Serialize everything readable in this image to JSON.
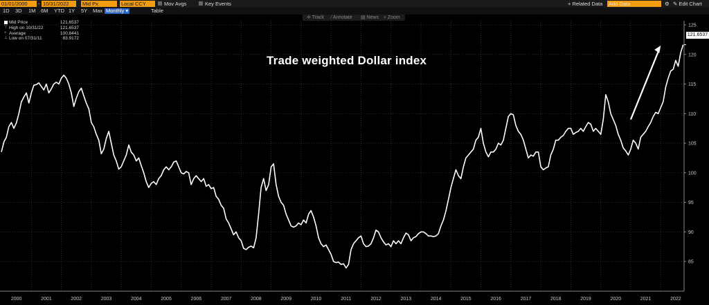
{
  "toolbar": {
    "start_date": "01/01/2000",
    "end_date": "10/31/2022",
    "price_field": "Mid Px",
    "currency": "Local CCY",
    "mov_avgs": "Mov Avgs",
    "key_events": "Key Events",
    "related_data_label": "+ Related Data",
    "related_data_placeholder": "Add Data",
    "edit_chart": "Edit Chart",
    "periods": [
      "1D",
      "3D",
      "1M",
      "6M",
      "YTD",
      "1Y",
      "5Y",
      "Max"
    ],
    "frequency": "Monthly",
    "table": "Table"
  },
  "chart_tools": {
    "track": "Track",
    "annotate": "Annotate",
    "news": "News",
    "zoom": "Zoom"
  },
  "legend": {
    "mid_price_label": "Mid Price",
    "mid_price_value": "121.6537",
    "high_label": "High on 10/31/22",
    "high_value": "121.6537",
    "average_label": "Average",
    "average_value": "100.8441",
    "low_label": "Low on 07/31/11",
    "low_value": "83.9172"
  },
  "last_value_tag": "121.6537",
  "colors": {
    "background": "#000000",
    "line": "#ffffff",
    "accent": "#f39c12"
  },
  "chart_data": {
    "type": "line",
    "title": "Trade weighted Dollar index",
    "xlabel": "",
    "ylabel": "",
    "ylim": [
      82,
      125
    ],
    "yticks": [
      85,
      90,
      95,
      100,
      105,
      110,
      115,
      120,
      125
    ],
    "xticks": [
      "2000",
      "2001",
      "2002",
      "2003",
      "2004",
      "2005",
      "2006",
      "2007",
      "2008",
      "2009",
      "2010",
      "2011",
      "2012",
      "2013",
      "2014",
      "2015",
      "2016",
      "2017",
      "2018",
      "2019",
      "2020",
      "2021",
      "2022"
    ],
    "grid": true,
    "annotations": [
      "white arrow pointing up from 2021 to 2022"
    ],
    "series": [
      {
        "x": [
          2000.0,
          2000.083,
          2000.167,
          2000.25,
          2000.333,
          2000.417,
          2000.5,
          2000.583,
          2000.667,
          2000.75,
          2000.833,
          2000.917,
          2001.0,
          2001.083,
          2001.167,
          2001.25,
          2001.333,
          2001.417,
          2001.5,
          2001.583,
          2001.667,
          2001.75,
          2001.833,
          2001.917,
          2002.0,
          2002.083,
          2002.167,
          2002.25,
          2002.333,
          2002.417,
          2002.5,
          2002.583,
          2002.667,
          2002.75,
          2002.833,
          2002.917,
          2003.0,
          2003.083,
          2003.167,
          2003.25,
          2003.333,
          2003.417,
          2003.5,
          2003.583,
          2003.667,
          2003.75,
          2003.833,
          2003.917,
          2004.0,
          2004.083,
          2004.167,
          2004.25,
          2004.333,
          2004.417,
          2004.5,
          2004.583,
          2004.667,
          2004.75,
          2004.833,
          2004.917,
          2005.0,
          2005.083,
          2005.167,
          2005.25,
          2005.333,
          2005.417,
          2005.5,
          2005.583,
          2005.667,
          2005.75,
          2005.833,
          2005.917,
          2006.0,
          2006.083,
          2006.167,
          2006.25,
          2006.333,
          2006.417,
          2006.5,
          2006.583,
          2006.667,
          2006.75,
          2006.833,
          2006.917,
          2007.0,
          2007.083,
          2007.167,
          2007.25,
          2007.333,
          2007.417,
          2007.5,
          2007.583,
          2007.667,
          2007.75,
          2007.833,
          2007.917,
          2008.0,
          2008.083,
          2008.167,
          2008.25,
          2008.333,
          2008.417,
          2008.5,
          2008.583,
          2008.667,
          2008.75,
          2008.833,
          2008.917,
          2009.0,
          2009.083,
          2009.167,
          2009.25,
          2009.333,
          2009.417,
          2009.5,
          2009.583,
          2009.667,
          2009.75,
          2009.833,
          2009.917,
          2010.0,
          2010.083,
          2010.167,
          2010.25,
          2010.333,
          2010.417,
          2010.5,
          2010.583,
          2010.667,
          2010.75,
          2010.833,
          2010.917,
          2011.0,
          2011.083,
          2011.167,
          2011.25,
          2011.333,
          2011.417,
          2011.5,
          2011.583,
          2011.667,
          2011.75,
          2011.833,
          2011.917,
          2012.0,
          2012.083,
          2012.167,
          2012.25,
          2012.333,
          2012.417,
          2012.5,
          2012.583,
          2012.667,
          2012.75,
          2012.833,
          2012.917,
          2013.0,
          2013.083,
          2013.167,
          2013.25,
          2013.333,
          2013.417,
          2013.5,
          2013.583,
          2013.667,
          2013.75,
          2013.833,
          2013.917,
          2014.0,
          2014.083,
          2014.167,
          2014.25,
          2014.333,
          2014.417,
          2014.5,
          2014.583,
          2014.667,
          2014.75,
          2014.833,
          2014.917,
          2015.0,
          2015.083,
          2015.167,
          2015.25,
          2015.333,
          2015.417,
          2015.5,
          2015.583,
          2015.667,
          2015.75,
          2015.833,
          2015.917,
          2016.0,
          2016.083,
          2016.167,
          2016.25,
          2016.333,
          2016.417,
          2016.5,
          2016.583,
          2016.667,
          2016.75,
          2016.833,
          2016.917,
          2017.0,
          2017.083,
          2017.167,
          2017.25,
          2017.333,
          2017.417,
          2017.5,
          2017.583,
          2017.667,
          2017.75,
          2017.833,
          2017.917,
          2018.0,
          2018.083,
          2018.167,
          2018.25,
          2018.333,
          2018.417,
          2018.5,
          2018.583,
          2018.667,
          2018.75,
          2018.833,
          2018.917,
          2019.0,
          2019.083,
          2019.167,
          2019.25,
          2019.333,
          2019.417,
          2019.5,
          2019.583,
          2019.667,
          2019.75,
          2019.833,
          2019.917,
          2020.0,
          2020.083,
          2020.167,
          2020.25,
          2020.333,
          2020.417,
          2020.5,
          2020.583,
          2020.667,
          2020.75,
          2020.833,
          2020.917,
          2021.0,
          2021.083,
          2021.167,
          2021.25,
          2021.333,
          2021.417,
          2021.5,
          2021.583,
          2021.667,
          2021.75,
          2021.833,
          2021.917,
          2022.0,
          2022.083,
          2022.167,
          2022.25,
          2022.333,
          2022.417,
          2022.5,
          2022.583,
          2022.667,
          2022.75
        ],
        "y": [
          103.5,
          105.2,
          106.0,
          107.8,
          108.5,
          107.5,
          108.4,
          110.0,
          112.0,
          112.8,
          113.5,
          111.8,
          113.5,
          114.8,
          114.9,
          115.2,
          114.6,
          114.0,
          115.0,
          113.5,
          114.2,
          115.0,
          115.3,
          115.0,
          116.0,
          116.5,
          116.0,
          115.0,
          113.5,
          111.2,
          112.6,
          113.7,
          114.3,
          113.0,
          111.8,
          110.8,
          108.5,
          107.8,
          106.5,
          105.5,
          103.2,
          104.0,
          105.8,
          107.0,
          105.0,
          103.0,
          102.0,
          100.6,
          101.0,
          102.0,
          103.0,
          104.7,
          103.5,
          103.0,
          102.0,
          102.5,
          101.2,
          100.0,
          98.5,
          97.5,
          98.2,
          98.5,
          98.0,
          99.0,
          99.5,
          100.5,
          101.0,
          100.5,
          101.0,
          101.8,
          102.0,
          101.0,
          100.0,
          99.8,
          100.2,
          100.0,
          98.0,
          99.0,
          99.5,
          99.0,
          98.5,
          99.0,
          97.7,
          98.0,
          97.3,
          97.5,
          96.0,
          95.5,
          94.5,
          94.0,
          92.2,
          91.5,
          90.5,
          89.5,
          90.0,
          89.0,
          88.5,
          87.2,
          87.0,
          87.4,
          87.6,
          87.3,
          89.0,
          93.0,
          97.5,
          99.0,
          97.0,
          98.0,
          101.0,
          101.5,
          98.0,
          96.0,
          95.0,
          94.5,
          93.0,
          92.0,
          91.0,
          90.8,
          91.0,
          91.5,
          91.2,
          92.0,
          91.5,
          93.0,
          93.6,
          92.5,
          91.0,
          89.0,
          88.0,
          87.5,
          87.8,
          87.0,
          86.2,
          85.0,
          84.8,
          84.9,
          84.5,
          84.6,
          83.9,
          84.5,
          87.0,
          88.0,
          88.5,
          89.0,
          89.3,
          88.0,
          87.5,
          87.6,
          88.0,
          89.0,
          90.3,
          90.0,
          89.0,
          88.3,
          87.8,
          88.0,
          87.5,
          88.5,
          88.0,
          88.5,
          88.0,
          89.0,
          89.8,
          89.5,
          88.5,
          89.0,
          89.2,
          89.7,
          90.0,
          90.0,
          89.7,
          89.3,
          89.3,
          89.2,
          89.3,
          89.7,
          91.0,
          92.0,
          93.5,
          95.5,
          97.5,
          99.0,
          100.5,
          99.5,
          99.0,
          101.0,
          102.5,
          103.0,
          103.5,
          104.0,
          105.5,
          106.0,
          107.5,
          105.0,
          103.5,
          102.7,
          103.5,
          103.5,
          104.0,
          105.0,
          104.7,
          105.5,
          107.5,
          109.5,
          110.0,
          109.8,
          108.0,
          107.0,
          106.5,
          105.5,
          104.0,
          102.5,
          103.0,
          102.8,
          103.5,
          103.5,
          101.0,
          100.5,
          100.8,
          101.0,
          103.0,
          104.0,
          105.5,
          105.5,
          106.0,
          106.3,
          107.0,
          107.5,
          107.5,
          106.5,
          106.8,
          107.0,
          107.5,
          107.0,
          107.8,
          108.5,
          108.2,
          107.0,
          107.5,
          107.0,
          106.5,
          109.0,
          113.2,
          112.0,
          110.0,
          109.0,
          108.0,
          106.5,
          105.5,
          104.2,
          103.7,
          103.0,
          104.0,
          105.5,
          105.0,
          104.0,
          106.0,
          106.5,
          107.0,
          107.8,
          108.5,
          109.5,
          110.2,
          110.0,
          111.0,
          112.0,
          114.5,
          116.0,
          117.2,
          117.5,
          119.0,
          118.0,
          120.3,
          121.6537
        ]
      }
    ]
  }
}
